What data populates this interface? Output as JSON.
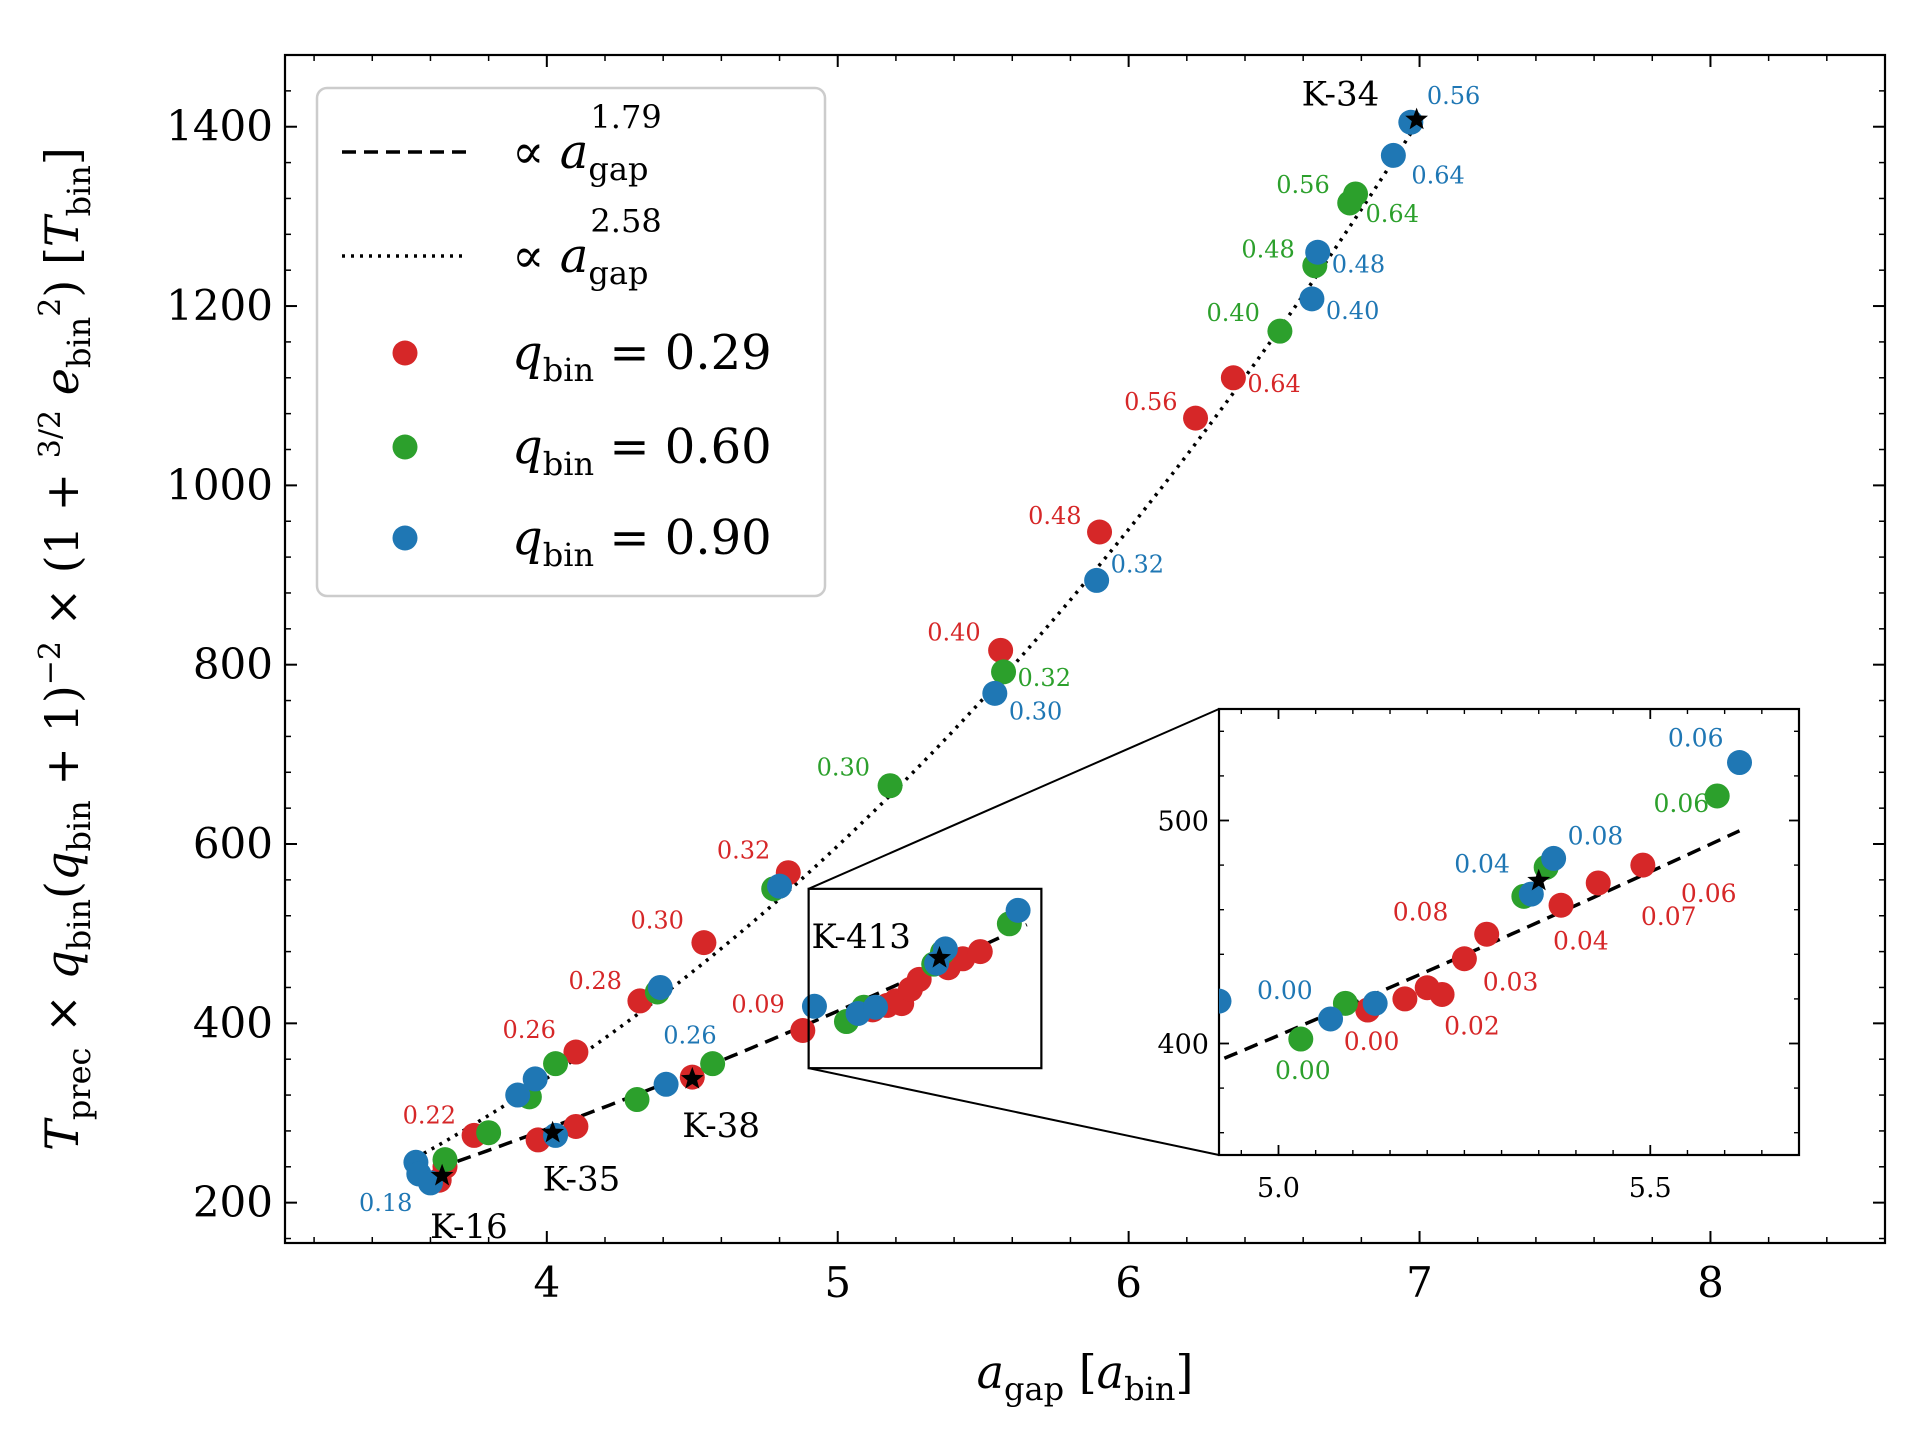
{
  "chart_data": {
    "type": "scatter",
    "xlabel": "a_gap [a_bin]",
    "ylabel": "T_prec × q_bin(q_bin + 1)^−2 × (1 + 3/2 e_bin^2) [T_bin]",
    "xlim": [
      3.1,
      8.6
    ],
    "ylim": [
      155,
      1480
    ],
    "xticks": [
      "4",
      "5",
      "6",
      "7",
      "8"
    ],
    "yticks": [
      "200",
      "400",
      "600",
      "800",
      "1000",
      "1200",
      "1400"
    ],
    "legend_position": "top-left",
    "colors": {
      "q029": "#d62728",
      "q060": "#2ca02c",
      "q090": "#1f77b4"
    },
    "fit_lines": [
      {
        "label": "∝ a_gap^1.79",
        "style": "dashed",
        "exponent": 1.79,
        "points": [
          [
            3.55,
            230
          ],
          [
            5.65,
            510
          ]
        ]
      },
      {
        "label": "∝ a_gap^2.58",
        "style": "dotted",
        "exponent": 2.58,
        "points": [
          [
            3.55,
            250
          ],
          [
            4.2,
            380
          ],
          [
            5.0,
            600
          ],
          [
            5.9,
            920
          ],
          [
            6.6,
            1230
          ],
          [
            7.0,
            1408
          ]
        ]
      }
    ],
    "series": [
      {
        "name": "q_bin = 0.29",
        "color": "#d62728",
        "points": [
          [
            3.63,
            225
          ],
          [
            3.65,
            240
          ],
          [
            3.75,
            275
          ],
          [
            3.97,
            270
          ],
          [
            4.1,
            285
          ],
          [
            4.1,
            368
          ],
          [
            4.32,
            425
          ],
          [
            4.5,
            340
          ],
          [
            4.54,
            490
          ],
          [
            4.83,
            568
          ],
          [
            4.88,
            392
          ],
          [
            5.12,
            415
          ],
          [
            5.17,
            420
          ],
          [
            5.2,
            425
          ],
          [
            5.22,
            422
          ],
          [
            5.25,
            438
          ],
          [
            5.28,
            449
          ],
          [
            5.38,
            462
          ],
          [
            5.43,
            472
          ],
          [
            5.49,
            480
          ],
          [
            5.56,
            816
          ],
          [
            5.9,
            948
          ],
          [
            6.23,
            1075
          ],
          [
            6.36,
            1120
          ]
        ]
      },
      {
        "name": "q_bin = 0.60",
        "color": "#2ca02c",
        "points": [
          [
            3.65,
            248
          ],
          [
            3.8,
            278
          ],
          [
            3.94,
            318
          ],
          [
            4.03,
            355
          ],
          [
            4.31,
            315
          ],
          [
            4.38,
            435
          ],
          [
            4.57,
            355
          ],
          [
            4.78,
            550
          ],
          [
            5.03,
            402
          ],
          [
            5.09,
            418
          ],
          [
            5.18,
            665
          ],
          [
            5.33,
            466
          ],
          [
            5.36,
            479
          ],
          [
            5.57,
            792
          ],
          [
            5.59,
            511
          ],
          [
            6.52,
            1172
          ],
          [
            6.64,
            1245
          ],
          [
            6.76,
            1315
          ],
          [
            6.78,
            1325
          ]
        ]
      },
      {
        "name": "q_bin = 0.90",
        "color": "#1f77b4",
        "points": [
          [
            3.55,
            245
          ],
          [
            3.56,
            232
          ],
          [
            3.6,
            222
          ],
          [
            3.9,
            320
          ],
          [
            3.96,
            338
          ],
          [
            4.03,
            275
          ],
          [
            4.39,
            440
          ],
          [
            4.41,
            332
          ],
          [
            4.8,
            553
          ],
          [
            4.92,
            419
          ],
          [
            5.07,
            411
          ],
          [
            5.13,
            418
          ],
          [
            5.34,
            467
          ],
          [
            5.37,
            483
          ],
          [
            5.54,
            768
          ],
          [
            5.62,
            526
          ],
          [
            5.89,
            894
          ],
          [
            6.63,
            1208
          ],
          [
            6.65,
            1260
          ],
          [
            6.91,
            1368
          ],
          [
            6.97,
            1405
          ]
        ]
      }
    ],
    "systems": [
      {
        "name": "K-16",
        "x": 3.64,
        "y": 230
      },
      {
        "name": "K-35",
        "x": 4.02,
        "y": 278
      },
      {
        "name": "K-38",
        "x": 4.5,
        "y": 338
      },
      {
        "name": "K-413",
        "x": 5.35,
        "y": 473
      },
      {
        "name": "K-34",
        "x": 6.99,
        "y": 1408
      }
    ],
    "labels_main": [
      {
        "text": "0.18",
        "x": 3.6,
        "y": 222,
        "color": "blue"
      },
      {
        "text": "0.22",
        "x": 3.75,
        "y": 275,
        "color": "red"
      },
      {
        "text": "0.26",
        "x": 4.1,
        "y": 368,
        "color": "red"
      },
      {
        "text": "0.28",
        "x": 4.32,
        "y": 425,
        "color": "red"
      },
      {
        "text": "0.26",
        "x": 4.39,
        "y": 440,
        "color": "blue"
      },
      {
        "text": "0.30",
        "x": 4.54,
        "y": 490,
        "color": "red"
      },
      {
        "text": "0.32",
        "x": 4.83,
        "y": 568,
        "color": "red"
      },
      {
        "text": "0.09",
        "x": 4.88,
        "y": 392,
        "color": "red"
      },
      {
        "text": "0.30",
        "x": 5.18,
        "y": 665,
        "color": "green"
      },
      {
        "text": "0.40",
        "x": 5.56,
        "y": 816,
        "color": "red"
      },
      {
        "text": "0.32",
        "x": 5.57,
        "y": 792,
        "color": "green"
      },
      {
        "text": "0.30",
        "x": 5.54,
        "y": 768,
        "color": "blue"
      },
      {
        "text": "0.48",
        "x": 5.9,
        "y": 948,
        "color": "red"
      },
      {
        "text": "0.32",
        "x": 5.89,
        "y": 894,
        "color": "blue"
      },
      {
        "text": "0.56",
        "x": 6.23,
        "y": 1075,
        "color": "red"
      },
      {
        "text": "0.64",
        "x": 6.36,
        "y": 1120,
        "color": "red"
      },
      {
        "text": "0.40",
        "x": 6.52,
        "y": 1172,
        "color": "green"
      },
      {
        "text": "0.40",
        "x": 6.63,
        "y": 1208,
        "color": "blue"
      },
      {
        "text": "0.48",
        "x": 6.64,
        "y": 1245,
        "color": "green"
      },
      {
        "text": "0.48",
        "x": 6.65,
        "y": 1260,
        "color": "blue"
      },
      {
        "text": "0.56",
        "x": 6.76,
        "y": 1315,
        "color": "green"
      },
      {
        "text": "0.64",
        "x": 6.78,
        "y": 1325,
        "color": "green"
      },
      {
        "text": "0.64",
        "x": 6.91,
        "y": 1368,
        "color": "blue"
      },
      {
        "text": "0.56",
        "x": 6.97,
        "y": 1405,
        "color": "blue"
      }
    ],
    "inset": {
      "xlim": [
        4.92,
        5.7
      ],
      "ylim": [
        350,
        550
      ],
      "xticks": [
        "5.0",
        "5.5"
      ],
      "yticks": [
        "400",
        "500"
      ],
      "labels": [
        {
          "text": "0.00",
          "x": 4.92,
          "y": 419,
          "color": "blue"
        },
        {
          "text": "0.00",
          "x": 5.03,
          "y": 402,
          "color": "green"
        },
        {
          "text": "0.00",
          "x": 5.12,
          "y": 415,
          "color": "red"
        },
        {
          "text": "0.02",
          "x": 5.22,
          "y": 422,
          "color": "red"
        },
        {
          "text": "0.03",
          "x": 5.28,
          "y": 440,
          "color": "red"
        },
        {
          "text": "0.04",
          "x": 5.33,
          "y": 466,
          "color": "blue"
        },
        {
          "text": "0.08",
          "x": 5.25,
          "y": 448,
          "color": "red"
        },
        {
          "text": "0.08",
          "x": 5.37,
          "y": 483,
          "color": "blue"
        },
        {
          "text": "0.04",
          "x": 5.38,
          "y": 461,
          "color": "red"
        },
        {
          "text": "0.07",
          "x": 5.49,
          "y": 472,
          "color": "red"
        },
        {
          "text": "0.06",
          "x": 5.56,
          "y": 477,
          "color": "red"
        },
        {
          "text": "0.06",
          "x": 5.59,
          "y": 511,
          "color": "green"
        },
        {
          "text": "0.06",
          "x": 5.62,
          "y": 526,
          "color": "blue"
        }
      ]
    },
    "legend": {
      "entries": [
        {
          "prefix": "∝ a",
          "sub": "gap",
          "sup": "1.79",
          "style": "dashed"
        },
        {
          "prefix": "∝ a",
          "sub": "gap",
          "sup": "2.58",
          "style": "dotted"
        },
        {
          "prefix": "q",
          "sub": "bin",
          "suffix": " = 0.29",
          "color": "red"
        },
        {
          "prefix": "q",
          "sub": "bin",
          "suffix": " = 0.60",
          "color": "green"
        },
        {
          "prefix": "q",
          "sub": "bin",
          "suffix": " = 0.90",
          "color": "blue"
        }
      ]
    }
  }
}
